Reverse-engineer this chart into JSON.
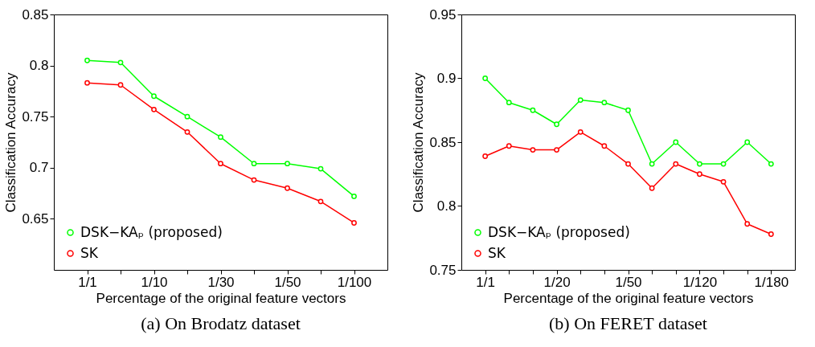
{
  "chart_data": [
    {
      "type": "line",
      "title": "(a) On Brodatz dataset",
      "xlabel": "Percentage of the original feature vectors",
      "ylabel": "Classification Accuracy",
      "categories": [
        "1/1",
        null,
        "1/10",
        null,
        "1/30",
        null,
        "1/50",
        null,
        "1/100"
      ],
      "series": [
        {
          "name": "DSK−KAₚ (proposed)",
          "color": "#00ff00",
          "values": [
            0.805,
            0.803,
            0.77,
            0.75,
            0.73,
            0.704,
            0.704,
            0.699,
            0.672
          ]
        },
        {
          "name": "SK",
          "color": "#ff0000",
          "values": [
            0.783,
            0.781,
            0.757,
            0.735,
            0.704,
            0.688,
            0.68,
            0.667,
            0.646
          ]
        }
      ],
      "ylim": [
        0.6,
        0.85
      ],
      "yticks": [
        0.65,
        0.7,
        0.75,
        0.8,
        0.85
      ],
      "grid": false,
      "legend": "bottom left",
      "marker": "circle",
      "line_style": "solid"
    },
    {
      "type": "line",
      "title": "(b) On FERET dataset",
      "xlabel": "Percentage of the original feature vectors",
      "ylabel": "Classification Accuracy",
      "categories": [
        "1/1",
        null,
        null,
        "1/20",
        null,
        null,
        "1/50",
        null,
        null,
        "1/120",
        null,
        null,
        "1/180"
      ],
      "series": [
        {
          "name": "DSK−KAₚ (proposed)",
          "color": "#00ff00",
          "values": [
            0.9,
            0.881,
            0.875,
            0.864,
            0.883,
            0.881,
            0.875,
            0.833,
            0.85,
            0.833,
            0.833,
            0.85,
            0.833
          ]
        },
        {
          "name": "SK",
          "color": "#ff0000",
          "values": [
            0.839,
            0.847,
            0.844,
            0.844,
            0.858,
            0.847,
            0.833,
            0.814,
            0.833,
            0.825,
            0.819,
            0.786,
            0.778
          ]
        }
      ],
      "ylim": [
        0.75,
        0.95
      ],
      "yticks": [
        0.75,
        0.8,
        0.85,
        0.9,
        0.95
      ],
      "grid": false,
      "legend": "bottom left",
      "marker": "circle",
      "line_style": "solid"
    }
  ]
}
